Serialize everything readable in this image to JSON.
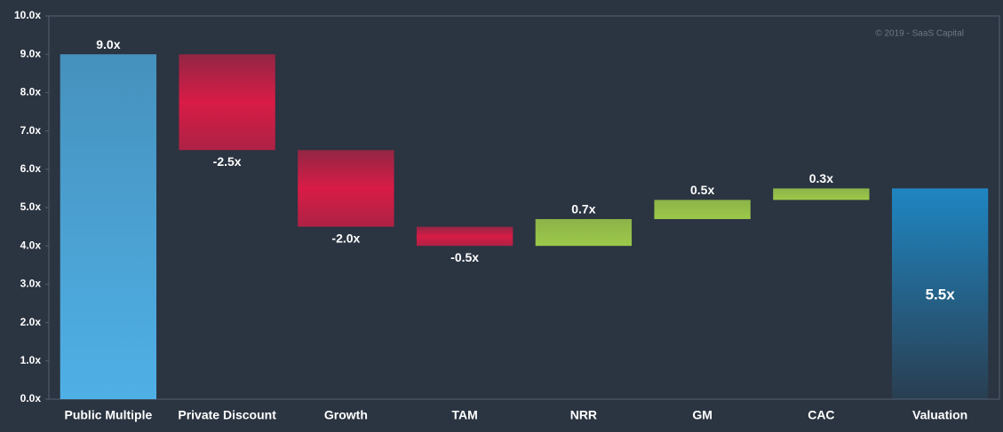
{
  "chart_data": {
    "type": "waterfall",
    "annotation": "© 2019 - SaaS Capital",
    "categories": [
      "Public Multiple",
      "Private Discount",
      "Growth",
      "TAM",
      "NRR",
      "GM",
      "CAC",
      "Valuation"
    ],
    "values": [
      9.0,
      -2.5,
      -2.0,
      -0.5,
      0.7,
      0.5,
      0.3,
      5.5
    ],
    "value_labels": [
      "9.0x",
      "-2.5x",
      "-2.0x",
      "-0.5x",
      "0.7x",
      "0.5x",
      "0.3x",
      "5.5x"
    ],
    "colors": {
      "start": "#4fb0e6",
      "decrease": "#d81c46",
      "increase": "#9cc94a",
      "end": "#1f86c2"
    },
    "ylim": [
      0,
      10
    ],
    "yticks": [
      {
        "value": 0,
        "label": "0.0x"
      },
      {
        "value": 1,
        "label": "1.0x"
      },
      {
        "value": 2,
        "label": "2.0x"
      },
      {
        "value": 3,
        "label": "3.0x"
      },
      {
        "value": 4,
        "label": "4.0x"
      },
      {
        "value": 5,
        "label": "5.0x"
      },
      {
        "value": 6,
        "label": "6.0x"
      },
      {
        "value": 7,
        "label": "7.0x"
      },
      {
        "value": 8,
        "label": "8.0x"
      },
      {
        "value": 9,
        "label": "9.0x"
      },
      {
        "value": 10,
        "label": "10.0x"
      }
    ]
  }
}
